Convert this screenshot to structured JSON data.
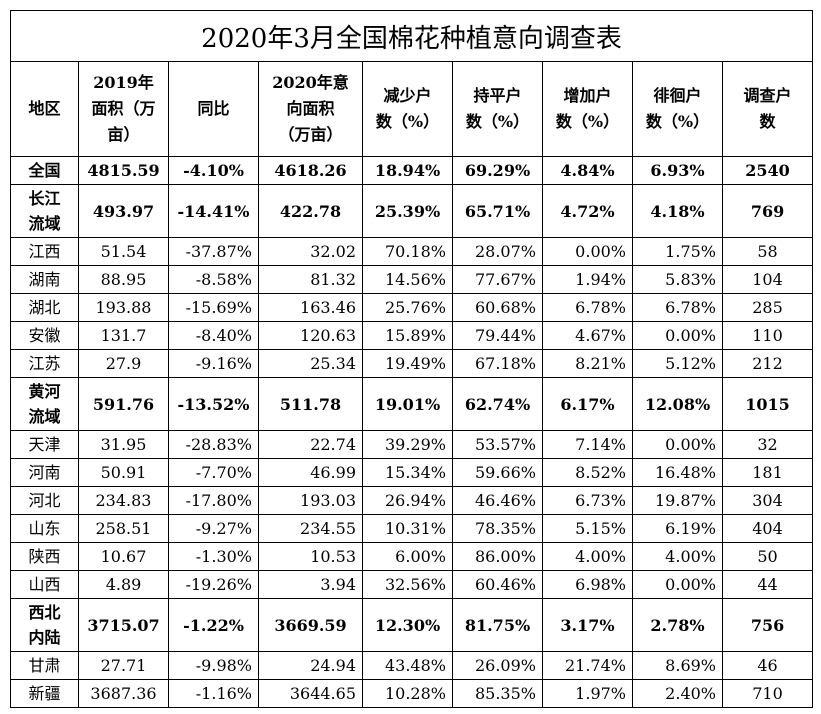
{
  "title": "2020年3月全国棉花种植意向调查表",
  "headers": [
    "地区",
    "2019年\n面积（万\n亩）",
    "同比",
    "2020年意\n向面积\n（万亩）",
    "减少户\n数（%）",
    "持平户\n数（%）",
    "增加户\n数（%）",
    "徘徊户\n数（%）",
    "调查户\n数"
  ],
  "rows": [
    {
      "region": "全国",
      "bold": true,
      "cells": [
        "4815.59",
        "-4.10%",
        "4618.26",
        "18.94%",
        "69.29%",
        "4.84%",
        "6.93%",
        "2540"
      ]
    },
    {
      "region": "长江\n流域",
      "bold": true,
      "cells": [
        "493.97",
        "-14.41%",
        "422.78",
        "25.39%",
        "65.71%",
        "4.72%",
        "4.18%",
        "769"
      ]
    },
    {
      "region": "江西",
      "cells": [
        "51.54",
        "-37.87%",
        "32.02",
        "70.18%",
        "28.07%",
        "0.00%",
        "1.75%",
        "58"
      ]
    },
    {
      "region": "湖南",
      "cells": [
        "88.95",
        "-8.58%",
        "81.32",
        "14.56%",
        "77.67%",
        "1.94%",
        "5.83%",
        "104"
      ]
    },
    {
      "region": "湖北",
      "cells": [
        "193.88",
        "-15.69%",
        "163.46",
        "25.76%",
        "60.68%",
        "6.78%",
        "6.78%",
        "285"
      ]
    },
    {
      "region": "安徽",
      "cells": [
        "131.7",
        "-8.40%",
        "120.63",
        "15.89%",
        "79.44%",
        "4.67%",
        "0.00%",
        "110"
      ]
    },
    {
      "region": "江苏",
      "cells": [
        "27.9",
        "-9.16%",
        "25.34",
        "19.49%",
        "67.18%",
        "8.21%",
        "5.12%",
        "212"
      ]
    },
    {
      "region": "黄河\n流域",
      "bold": true,
      "cells": [
        "591.76",
        "-13.52%",
        "511.78",
        "19.01%",
        "62.74%",
        "6.17%",
        "12.08%",
        "1015"
      ]
    },
    {
      "region": "天津",
      "cells": [
        "31.95",
        "-28.83%",
        "22.74",
        "39.29%",
        "53.57%",
        "7.14%",
        "0.00%",
        "32"
      ]
    },
    {
      "region": "河南",
      "cells": [
        "50.91",
        "-7.70%",
        "46.99",
        "15.34%",
        "59.66%",
        "8.52%",
        "16.48%",
        "181"
      ]
    },
    {
      "region": "河北",
      "cells": [
        "234.83",
        "-17.80%",
        "193.03",
        "26.94%",
        "46.46%",
        "6.73%",
        "19.87%",
        "304"
      ]
    },
    {
      "region": "山东",
      "cells": [
        "258.51",
        "-9.27%",
        "234.55",
        "10.31%",
        "78.35%",
        "5.15%",
        "6.19%",
        "404"
      ]
    },
    {
      "region": "陕西",
      "cells": [
        "10.67",
        "-1.30%",
        "10.53",
        "6.00%",
        "86.00%",
        "4.00%",
        "4.00%",
        "50"
      ]
    },
    {
      "region": "山西",
      "cells": [
        "4.89",
        "-19.26%",
        "3.94",
        "32.56%",
        "60.46%",
        "6.98%",
        "0.00%",
        "44"
      ]
    },
    {
      "region": "西北\n内陆",
      "bold": true,
      "cells": [
        "3715.07",
        "-1.22%",
        "3669.59",
        "12.30%",
        "81.75%",
        "3.17%",
        "2.78%",
        "756"
      ]
    },
    {
      "region": "甘肃",
      "cells": [
        "27.71",
        "-9.98%",
        "24.94",
        "43.48%",
        "26.09%",
        "21.74%",
        "8.69%",
        "46"
      ]
    },
    {
      "region": "新疆",
      "cells": [
        "3687.36",
        "-1.16%",
        "3644.65",
        "10.28%",
        "85.35%",
        "1.97%",
        "2.40%",
        "710"
      ]
    }
  ]
}
